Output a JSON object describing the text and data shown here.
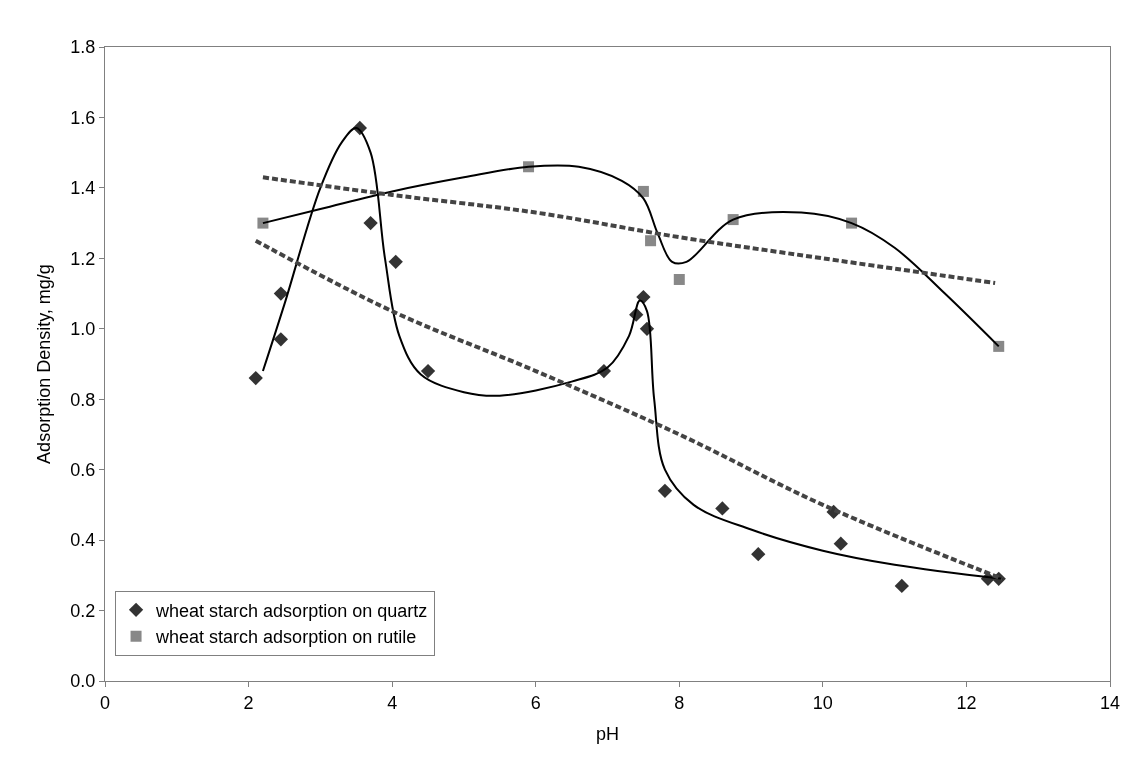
{
  "chart_data": {
    "type": "scatter",
    "xlabel": "pH",
    "ylabel": "Adsorption Density, mg/g",
    "xlim": [
      0,
      14
    ],
    "xticks": [
      0,
      2,
      4,
      6,
      8,
      10,
      12,
      14
    ],
    "ylim": [
      0,
      1.8
    ],
    "yticks": [
      {
        "value": 0,
        "label": "0.0"
      },
      {
        "value": 0.2,
        "label": "0.2"
      },
      {
        "value": 0.4,
        "label": "0.4"
      },
      {
        "value": 0.6,
        "label": "0.6"
      },
      {
        "value": 0.8,
        "label": "0.8"
      },
      {
        "value": 1.0,
        "label": "1.0"
      },
      {
        "value": 1.2,
        "label": "1.2"
      },
      {
        "value": 1.4,
        "label": "1.4"
      },
      {
        "value": 1.6,
        "label": "1.6"
      },
      {
        "value": 1.8,
        "label": "1.8"
      }
    ],
    "legend": "bottom left",
    "series": [
      {
        "name": "wheat starch adsorption on quartz",
        "marker": "diamond",
        "color": "#333333",
        "x": [
          2.1,
          2.45,
          2.45,
          3.55,
          3.7,
          4.05,
          4.5,
          6.95,
          7.4,
          7.5,
          7.55,
          7.8,
          8.6,
          9.1,
          10.15,
          10.25,
          11.1,
          12.3,
          12.45
        ],
        "values": [
          0.86,
          1.1,
          0.97,
          1.57,
          1.3,
          1.19,
          0.88,
          0.88,
          1.04,
          1.09,
          1.0,
          0.54,
          0.49,
          0.36,
          0.48,
          0.39,
          0.27,
          0.29,
          0.29
        ]
      },
      {
        "name": "wheat starch adsorption on rutile",
        "marker": "square",
        "color": "#888888",
        "x": [
          2.2,
          5.9,
          7.5,
          7.6,
          8.0,
          8.75,
          10.4,
          12.45
        ],
        "values": [
          1.3,
          1.46,
          1.39,
          1.25,
          1.14,
          1.31,
          1.3,
          0.95
        ]
      },
      {
        "type": "line",
        "line_style": "solid",
        "marker": "none",
        "color": "#000000",
        "x": [
          2.2,
          2.5,
          3.0,
          3.3,
          3.5,
          3.7,
          3.9,
          4.1,
          4.4,
          5.0,
          5.5,
          6.5,
          7.0,
          7.3,
          7.45,
          7.55,
          7.65,
          7.8,
          8.2,
          9.0,
          10.0,
          11.0,
          12.5
        ],
        "values": [
          0.88,
          1.07,
          1.4,
          1.53,
          1.57,
          1.5,
          1.2,
          0.98,
          0.87,
          0.82,
          0.81,
          0.85,
          0.89,
          0.98,
          1.08,
          1.05,
          0.8,
          0.6,
          0.5,
          0.43,
          0.37,
          0.33,
          0.29
        ]
      },
      {
        "type": "line",
        "line_style": "solid",
        "marker": "none",
        "color": "#000000",
        "x": [
          2.2,
          3.0,
          4.0,
          5.0,
          5.9,
          6.6,
          7.2,
          7.5,
          7.7,
          7.9,
          8.1,
          8.75,
          9.7,
          10.4,
          11.0,
          11.7,
          12.45
        ],
        "values": [
          1.3,
          1.34,
          1.39,
          1.43,
          1.46,
          1.46,
          1.42,
          1.37,
          1.27,
          1.19,
          1.19,
          1.31,
          1.33,
          1.3,
          1.23,
          1.1,
          0.95
        ]
      },
      {
        "type": "line",
        "line_style": "dashed",
        "marker": "none",
        "color": "#444444",
        "x": [
          2.1,
          4.0,
          6.0,
          8.0,
          10.0,
          12.5
        ],
        "values": [
          1.25,
          1.05,
          0.88,
          0.7,
          0.5,
          0.29
        ]
      },
      {
        "type": "line",
        "line_style": "dashed",
        "marker": "none",
        "color": "#444444",
        "x": [
          2.2,
          4.0,
          6.0,
          8.0,
          10.0,
          12.4
        ],
        "values": [
          1.43,
          1.38,
          1.33,
          1.26,
          1.2,
          1.13
        ]
      }
    ]
  }
}
